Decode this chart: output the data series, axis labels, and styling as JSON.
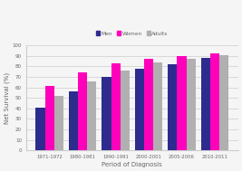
{
  "categories": [
    "1971-1972",
    "1980-1981",
    "1990-1991",
    "2000-2001",
    "2005-2006",
    "2010-2011"
  ],
  "men": [
    41,
    56,
    70,
    78,
    82,
    88
  ],
  "women": [
    61,
    74,
    83,
    87,
    90,
    92
  ],
  "adults": [
    52,
    66,
    76,
    84,
    87,
    91
  ],
  "men_color": "#2e2b8f",
  "women_color": "#ff00bb",
  "adults_color": "#b0b0b0",
  "xlabel": "Period of Diagnosis",
  "ylabel": "Net Survival (%)",
  "legend_labels": [
    "Men",
    "Women",
    "Adults"
  ],
  "ylim": [
    0,
    100
  ],
  "yticks": [
    0,
    10,
    20,
    30,
    40,
    50,
    60,
    70,
    80,
    90,
    100
  ],
  "background_color": "#f5f5f5",
  "bar_width": 0.28
}
